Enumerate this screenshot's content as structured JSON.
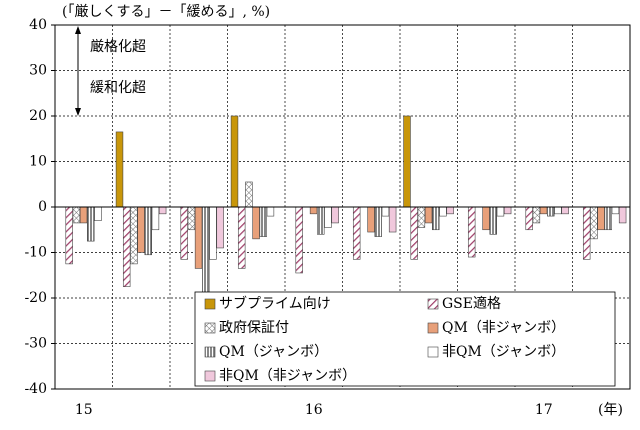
{
  "chart_data": {
    "type": "bar",
    "annotation": "(「厳しくする」－「緩める」, %)",
    "note_up": "厳格化超",
    "note_down": "緩和化超",
    "x_unit": "(年)",
    "categories": [
      "15",
      null,
      null,
      null,
      "16",
      null,
      null,
      null,
      "17",
      null
    ],
    "series": [
      {
        "name": "サブプライム向け",
        "color": "#c8960a",
        "hatch": "solid",
        "values": [
          0,
          16.5,
          0,
          20,
          0,
          0,
          20,
          0,
          0,
          0
        ]
      },
      {
        "name": "GSE適格",
        "color": "#a0406a",
        "hatch": "diag",
        "values": [
          -12.5,
          -17.5,
          -11.5,
          -13.5,
          -14.5,
          -11.5,
          -11.5,
          -11,
          -5,
          -11.5
        ]
      },
      {
        "name": "政府保証付",
        "color": "#707070",
        "hatch": "cross",
        "values": [
          -3.5,
          -12.5,
          -5,
          5.5,
          0,
          0,
          -4.5,
          0,
          -3.5,
          -7
        ]
      },
      {
        "name": "QM（非ジャンボ）",
        "color": "#e8a07a",
        "hatch": "solid",
        "values": [
          -3.5,
          -10,
          -13.5,
          -7,
          -1.5,
          -5.5,
          -3.5,
          -5,
          -1.5,
          -5
        ]
      },
      {
        "name": "QM（ジャンボ）",
        "color": "#606060",
        "hatch": "vstripe",
        "values": [
          -7.5,
          -10.5,
          -23,
          -6.5,
          -6,
          -6.5,
          -5,
          -6,
          -2,
          -5
        ]
      },
      {
        "name": "非QM（ジャンボ）",
        "color": "#ffffff",
        "hatch": "solid",
        "values": [
          -3,
          -5,
          -11.5,
          -2,
          -4.5,
          -2,
          -2,
          -2,
          -1.5,
          -1.5
        ]
      },
      {
        "name": "非QM（非ジャンボ）",
        "color": "#f0c8dc",
        "hatch": "solid",
        "values": [
          0,
          -1.5,
          -9,
          0,
          -3.5,
          -5.5,
          -1.5,
          -1.5,
          -1.5,
          -3.5
        ]
      }
    ],
    "ylim": [
      -40,
      40
    ],
    "yticks": [
      -40,
      -30,
      -20,
      -10,
      0,
      10,
      20,
      30,
      40
    ],
    "grid": true
  }
}
